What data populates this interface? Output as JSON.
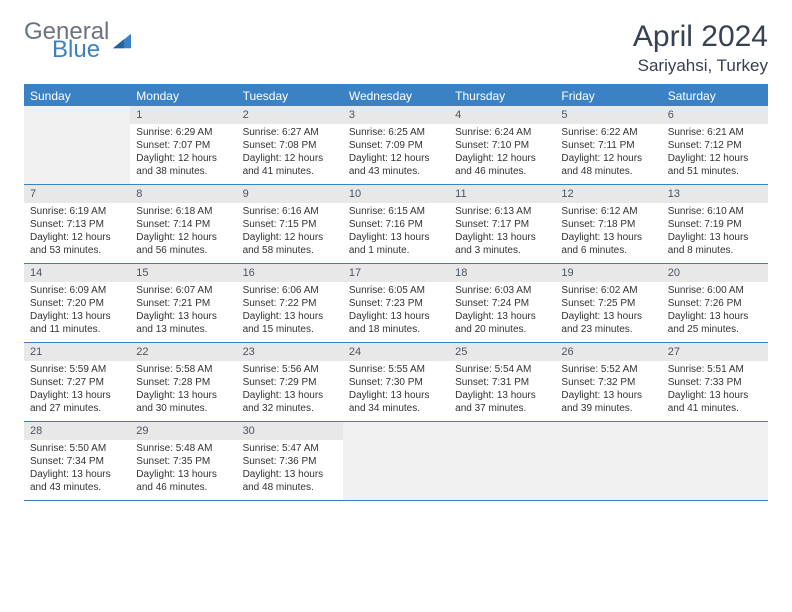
{
  "logo": {
    "part1": "General",
    "part2": "Blue"
  },
  "title": "April 2024",
  "location": "Sariyahsi, Turkey",
  "colors": {
    "accent": "#3b82c4",
    "header_bg": "#3b82c4",
    "header_text": "#ffffff",
    "daynum_bg": "#e8e8e8",
    "empty_bg": "#f0f0f0",
    "text": "#333333",
    "logo_gray": "#6b7280"
  },
  "day_headers": [
    "Sunday",
    "Monday",
    "Tuesday",
    "Wednesday",
    "Thursday",
    "Friday",
    "Saturday"
  ],
  "start_offset": 1,
  "days_in_month": 30,
  "days": [
    {
      "n": 1,
      "sunrise": "6:29 AM",
      "sunset": "7:07 PM",
      "daylight1": "Daylight: 12 hours",
      "daylight2": "and 38 minutes."
    },
    {
      "n": 2,
      "sunrise": "6:27 AM",
      "sunset": "7:08 PM",
      "daylight1": "Daylight: 12 hours",
      "daylight2": "and 41 minutes."
    },
    {
      "n": 3,
      "sunrise": "6:25 AM",
      "sunset": "7:09 PM",
      "daylight1": "Daylight: 12 hours",
      "daylight2": "and 43 minutes."
    },
    {
      "n": 4,
      "sunrise": "6:24 AM",
      "sunset": "7:10 PM",
      "daylight1": "Daylight: 12 hours",
      "daylight2": "and 46 minutes."
    },
    {
      "n": 5,
      "sunrise": "6:22 AM",
      "sunset": "7:11 PM",
      "daylight1": "Daylight: 12 hours",
      "daylight2": "and 48 minutes."
    },
    {
      "n": 6,
      "sunrise": "6:21 AM",
      "sunset": "7:12 PM",
      "daylight1": "Daylight: 12 hours",
      "daylight2": "and 51 minutes."
    },
    {
      "n": 7,
      "sunrise": "6:19 AM",
      "sunset": "7:13 PM",
      "daylight1": "Daylight: 12 hours",
      "daylight2": "and 53 minutes."
    },
    {
      "n": 8,
      "sunrise": "6:18 AM",
      "sunset": "7:14 PM",
      "daylight1": "Daylight: 12 hours",
      "daylight2": "and 56 minutes."
    },
    {
      "n": 9,
      "sunrise": "6:16 AM",
      "sunset": "7:15 PM",
      "daylight1": "Daylight: 12 hours",
      "daylight2": "and 58 minutes."
    },
    {
      "n": 10,
      "sunrise": "6:15 AM",
      "sunset": "7:16 PM",
      "daylight1": "Daylight: 13 hours",
      "daylight2": "and 1 minute."
    },
    {
      "n": 11,
      "sunrise": "6:13 AM",
      "sunset": "7:17 PM",
      "daylight1": "Daylight: 13 hours",
      "daylight2": "and 3 minutes."
    },
    {
      "n": 12,
      "sunrise": "6:12 AM",
      "sunset": "7:18 PM",
      "daylight1": "Daylight: 13 hours",
      "daylight2": "and 6 minutes."
    },
    {
      "n": 13,
      "sunrise": "6:10 AM",
      "sunset": "7:19 PM",
      "daylight1": "Daylight: 13 hours",
      "daylight2": "and 8 minutes."
    },
    {
      "n": 14,
      "sunrise": "6:09 AM",
      "sunset": "7:20 PM",
      "daylight1": "Daylight: 13 hours",
      "daylight2": "and 11 minutes."
    },
    {
      "n": 15,
      "sunrise": "6:07 AM",
      "sunset": "7:21 PM",
      "daylight1": "Daylight: 13 hours",
      "daylight2": "and 13 minutes."
    },
    {
      "n": 16,
      "sunrise": "6:06 AM",
      "sunset": "7:22 PM",
      "daylight1": "Daylight: 13 hours",
      "daylight2": "and 15 minutes."
    },
    {
      "n": 17,
      "sunrise": "6:05 AM",
      "sunset": "7:23 PM",
      "daylight1": "Daylight: 13 hours",
      "daylight2": "and 18 minutes."
    },
    {
      "n": 18,
      "sunrise": "6:03 AM",
      "sunset": "7:24 PM",
      "daylight1": "Daylight: 13 hours",
      "daylight2": "and 20 minutes."
    },
    {
      "n": 19,
      "sunrise": "6:02 AM",
      "sunset": "7:25 PM",
      "daylight1": "Daylight: 13 hours",
      "daylight2": "and 23 minutes."
    },
    {
      "n": 20,
      "sunrise": "6:00 AM",
      "sunset": "7:26 PM",
      "daylight1": "Daylight: 13 hours",
      "daylight2": "and 25 minutes."
    },
    {
      "n": 21,
      "sunrise": "5:59 AM",
      "sunset": "7:27 PM",
      "daylight1": "Daylight: 13 hours",
      "daylight2": "and 27 minutes."
    },
    {
      "n": 22,
      "sunrise": "5:58 AM",
      "sunset": "7:28 PM",
      "daylight1": "Daylight: 13 hours",
      "daylight2": "and 30 minutes."
    },
    {
      "n": 23,
      "sunrise": "5:56 AM",
      "sunset": "7:29 PM",
      "daylight1": "Daylight: 13 hours",
      "daylight2": "and 32 minutes."
    },
    {
      "n": 24,
      "sunrise": "5:55 AM",
      "sunset": "7:30 PM",
      "daylight1": "Daylight: 13 hours",
      "daylight2": "and 34 minutes."
    },
    {
      "n": 25,
      "sunrise": "5:54 AM",
      "sunset": "7:31 PM",
      "daylight1": "Daylight: 13 hours",
      "daylight2": "and 37 minutes."
    },
    {
      "n": 26,
      "sunrise": "5:52 AM",
      "sunset": "7:32 PM",
      "daylight1": "Daylight: 13 hours",
      "daylight2": "and 39 minutes."
    },
    {
      "n": 27,
      "sunrise": "5:51 AM",
      "sunset": "7:33 PM",
      "daylight1": "Daylight: 13 hours",
      "daylight2": "and 41 minutes."
    },
    {
      "n": 28,
      "sunrise": "5:50 AM",
      "sunset": "7:34 PM",
      "daylight1": "Daylight: 13 hours",
      "daylight2": "and 43 minutes."
    },
    {
      "n": 29,
      "sunrise": "5:48 AM",
      "sunset": "7:35 PM",
      "daylight1": "Daylight: 13 hours",
      "daylight2": "and 46 minutes."
    },
    {
      "n": 30,
      "sunrise": "5:47 AM",
      "sunset": "7:36 PM",
      "daylight1": "Daylight: 13 hours",
      "daylight2": "and 48 minutes."
    }
  ]
}
